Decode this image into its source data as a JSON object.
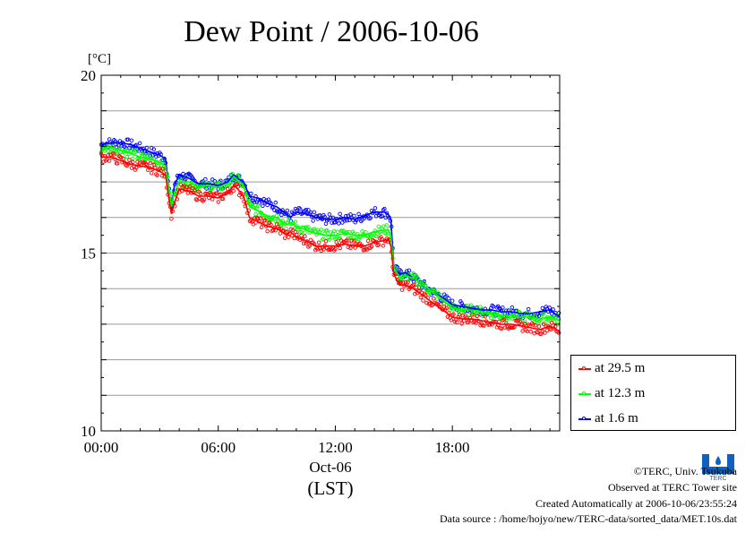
{
  "chart_data": {
    "type": "line",
    "title": "Dew Point / 2006-10-06",
    "ylabel": "[°C]",
    "xlabel_date": "Oct-06",
    "xlabel_unit": "(LST)",
    "ylim": [
      10,
      20
    ],
    "xlim_hours": [
      0,
      23.5
    ],
    "yticks": [
      10,
      15,
      20
    ],
    "ytick_labels": [
      "10",
      "15",
      "20"
    ],
    "xticks_hours": [
      0,
      6,
      12,
      18
    ],
    "xtick_labels": [
      "00:00",
      "06:00",
      "12:00",
      "18:00"
    ],
    "grid": true,
    "legend_position": "right-bottom",
    "series": [
      {
        "name": "at 29.5 m",
        "color": "#ff0000",
        "x": [
          0,
          0.5,
          1,
          1.5,
          2,
          2.5,
          3,
          3.3,
          3.45,
          3.6,
          3.75,
          4,
          4.5,
          5,
          5.5,
          6,
          6.5,
          6.8,
          7,
          7.3,
          7.6,
          8,
          8.5,
          9,
          9.5,
          9.7,
          10,
          10.5,
          11,
          11.5,
          12,
          12.5,
          13,
          13.5,
          14,
          14.5,
          14.7,
          14.85,
          15,
          15.3,
          15.6,
          16,
          16.5,
          17,
          17.5,
          18,
          18.5,
          19,
          19.5,
          20,
          20.5,
          21,
          21.5,
          22,
          22.5,
          23,
          23.5
        ],
        "y": [
          17.7,
          17.7,
          17.6,
          17.5,
          17.45,
          17.4,
          17.3,
          17.2,
          16.6,
          16.1,
          16.4,
          16.8,
          16.75,
          16.6,
          16.6,
          16.55,
          16.7,
          16.9,
          16.8,
          16.6,
          16.0,
          15.9,
          15.75,
          15.7,
          15.5,
          15.6,
          15.45,
          15.35,
          15.2,
          15.2,
          15.2,
          15.25,
          15.2,
          15.2,
          15.3,
          15.35,
          15.4,
          15.2,
          14.4,
          14.1,
          14.1,
          14.0,
          13.8,
          13.6,
          13.4,
          13.2,
          13.15,
          13.15,
          13.1,
          13.05,
          13.0,
          13.0,
          12.95,
          12.9,
          12.85,
          12.95,
          12.8
        ]
      },
      {
        "name": "at 12.3 m",
        "color": "#00ff00",
        "x": [
          0,
          0.5,
          1,
          1.5,
          2,
          2.5,
          3,
          3.3,
          3.45,
          3.6,
          3.75,
          4,
          4.5,
          5,
          5.5,
          6,
          6.5,
          6.8,
          7,
          7.3,
          7.6,
          8,
          8.5,
          9,
          9.5,
          9.7,
          10,
          10.5,
          11,
          11.5,
          12,
          12.5,
          13,
          13.5,
          14,
          14.5,
          14.7,
          14.85,
          15,
          15.3,
          15.6,
          16,
          16.5,
          17,
          17.5,
          18,
          18.5,
          19,
          19.5,
          20,
          20.5,
          21,
          21.5,
          22,
          22.5,
          23,
          23.5
        ],
        "y": [
          17.95,
          17.95,
          17.9,
          17.8,
          17.7,
          17.65,
          17.55,
          17.45,
          16.9,
          16.3,
          16.7,
          17.0,
          17.0,
          16.85,
          16.9,
          16.85,
          16.95,
          17.15,
          17.05,
          16.9,
          16.3,
          16.2,
          16.05,
          16.0,
          15.8,
          15.85,
          15.75,
          15.65,
          15.55,
          15.5,
          15.5,
          15.55,
          15.5,
          15.5,
          15.6,
          15.65,
          15.65,
          15.5,
          14.6,
          14.3,
          14.35,
          14.3,
          14.1,
          13.9,
          13.7,
          13.45,
          13.4,
          13.4,
          13.35,
          13.3,
          13.25,
          13.25,
          13.2,
          13.2,
          13.15,
          13.2,
          13.1
        ]
      },
      {
        "name": "at 1.6 m",
        "color": "#0000ff",
        "x": [
          0,
          0.5,
          1,
          1.5,
          2,
          2.5,
          3,
          3.3,
          3.45,
          3.6,
          3.75,
          4,
          4.5,
          5,
          5.5,
          6,
          6.5,
          6.8,
          7,
          7.3,
          7.6,
          8,
          8.5,
          9,
          9.5,
          9.7,
          10,
          10.5,
          11,
          11.5,
          12,
          12.5,
          13,
          13.5,
          14,
          14.5,
          14.7,
          14.85,
          15,
          15.3,
          15.6,
          16,
          16.5,
          17,
          17.5,
          18,
          18.5,
          19,
          19.5,
          20,
          20.5,
          21,
          21.5,
          22,
          22.5,
          23,
          23.5
        ],
        "y": [
          18.05,
          18.1,
          18.1,
          18.05,
          17.95,
          17.85,
          17.75,
          17.65,
          16.9,
          16.2,
          16.9,
          17.2,
          17.1,
          16.95,
          16.95,
          16.9,
          17.0,
          17.2,
          17.1,
          17.0,
          16.6,
          16.55,
          16.4,
          16.3,
          16.1,
          16.0,
          16.15,
          16.1,
          16.0,
          15.95,
          15.95,
          16.0,
          15.95,
          16.05,
          16.15,
          16.15,
          16.1,
          15.95,
          14.6,
          14.4,
          14.45,
          14.3,
          14.1,
          13.9,
          13.75,
          13.55,
          13.5,
          13.45,
          13.4,
          13.4,
          13.35,
          13.35,
          13.3,
          13.3,
          13.35,
          13.4,
          13.2
        ]
      }
    ]
  },
  "credits": {
    "copyright": "©TERC, Univ. Tsukuba",
    "observed": "Observed at TERC Tower site",
    "created": "Created Automatically at 2006-10-06/23:55:24",
    "source": "Data source : /home/hojyo/new/TERC-data/sorted_data/MET.10s.dat"
  },
  "logo": {
    "text": "TERC",
    "color": "#1060c0"
  }
}
